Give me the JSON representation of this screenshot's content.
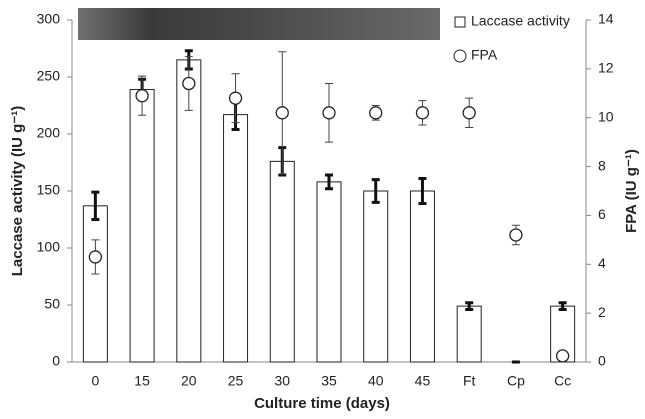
{
  "chart_data": {
    "type": "bar",
    "categories": [
      "0",
      "15",
      "20",
      "25",
      "30",
      "35",
      "40",
      "45",
      "Ft",
      "Cp",
      "Cc"
    ],
    "xlabel": "Culture time (days)",
    "ylabel": "Laccase activity (IU g⁻¹)",
    "y2label": "FPA (IU g⁻¹)",
    "ylim": [
      0,
      300
    ],
    "yticks": [
      0,
      50,
      100,
      150,
      200,
      250,
      300
    ],
    "y2lim": [
      0,
      14
    ],
    "y2ticks": [
      0,
      2,
      4,
      6,
      8,
      10,
      12,
      14
    ],
    "legend": "upper right",
    "series": [
      {
        "name": "Laccase activity",
        "type": "bar",
        "color": "#ffffff",
        "values": [
          137,
          239,
          265,
          217,
          176,
          158,
          150,
          150,
          49,
          0,
          49
        ],
        "errors": [
          12,
          9,
          8,
          13,
          12,
          6,
          10,
          11,
          3,
          0,
          3
        ]
      },
      {
        "name": "FPA",
        "type": "scatter",
        "axis": "y2",
        "color": "#ffffff",
        "values": [
          4.3,
          10.9,
          11.4,
          10.8,
          10.2,
          10.2,
          10.2,
          10.2,
          10.2,
          5.2,
          0.25
        ],
        "errors": [
          0.7,
          0.8,
          1.1,
          1.0,
          2.5,
          1.2,
          0.3,
          0.5,
          0.6,
          0.4,
          0
        ]
      }
    ]
  }
}
